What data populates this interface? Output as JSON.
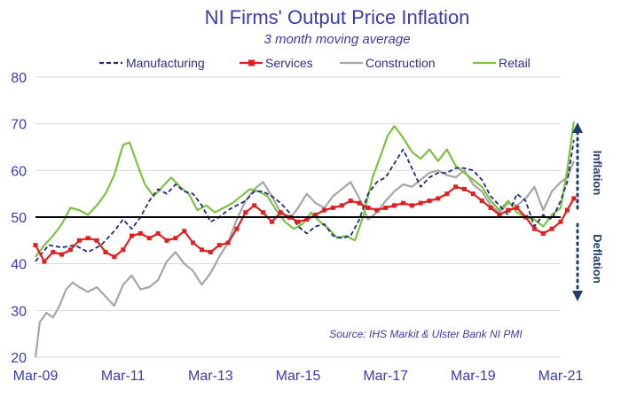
{
  "chart_data": {
    "type": "line",
    "title": "NI Firms' Output Price Inflation",
    "subtitle": "3 month moving average",
    "xlabel": "",
    "ylabel": "",
    "ylim": [
      20,
      80
    ],
    "yticks": [
      20,
      30,
      40,
      50,
      60,
      70,
      80
    ],
    "xticks": [
      "Mar-09",
      "Mar-11",
      "Mar-13",
      "Mar-15",
      "Mar-17",
      "Mar-19",
      "Mar-21"
    ],
    "x_range": [
      2009.0,
      2021.0
    ],
    "grid": true,
    "legend_position": "top",
    "reference_line": 50,
    "annotations": {
      "source": "Source: IHS Markit & Ulster Bank NI PMI",
      "inflation_label": "Inflation",
      "deflation_label": "Deflation"
    },
    "series": [
      {
        "name": "Manufacturing",
        "color": "#1f2d7a",
        "style": "dashed",
        "points": [
          [
            2009.0,
            40.5
          ],
          [
            2009.3,
            44.0
          ],
          [
            2009.6,
            43.5
          ],
          [
            2009.9,
            44.0
          ],
          [
            2010.2,
            42.5
          ],
          [
            2010.5,
            44.0
          ],
          [
            2010.8,
            47.0
          ],
          [
            2011.0,
            49.5
          ],
          [
            2011.2,
            47.5
          ],
          [
            2011.4,
            50.0
          ],
          [
            2011.6,
            53.5
          ],
          [
            2011.8,
            56.0
          ],
          [
            2012.0,
            55.0
          ],
          [
            2012.2,
            57.0
          ],
          [
            2012.4,
            55.5
          ],
          [
            2012.6,
            55.0
          ],
          [
            2012.8,
            52.5
          ],
          [
            2013.0,
            49.0
          ],
          [
            2013.2,
            50.0
          ],
          [
            2013.4,
            51.5
          ],
          [
            2013.6,
            52.5
          ],
          [
            2013.8,
            53.5
          ],
          [
            2014.0,
            55.5
          ],
          [
            2014.2,
            55.5
          ],
          [
            2014.4,
            54.5
          ],
          [
            2014.6,
            53.0
          ],
          [
            2014.8,
            51.0
          ],
          [
            2015.0,
            48.0
          ],
          [
            2015.2,
            46.5
          ],
          [
            2015.4,
            48.0
          ],
          [
            2015.6,
            48.5
          ],
          [
            2015.8,
            46.0
          ],
          [
            2016.0,
            45.5
          ],
          [
            2016.2,
            46.0
          ],
          [
            2016.4,
            49.5
          ],
          [
            2016.6,
            55.0
          ],
          [
            2016.8,
            57.5
          ],
          [
            2017.0,
            58.5
          ],
          [
            2017.2,
            61.5
          ],
          [
            2017.4,
            64.5
          ],
          [
            2017.6,
            60.5
          ],
          [
            2017.8,
            56.5
          ],
          [
            2018.0,
            58.5
          ],
          [
            2018.2,
            59.5
          ],
          [
            2018.4,
            59.5
          ],
          [
            2018.6,
            60.5
          ],
          [
            2018.8,
            60.5
          ],
          [
            2019.0,
            60.0
          ],
          [
            2019.2,
            58.0
          ],
          [
            2019.4,
            54.5
          ],
          [
            2019.6,
            52.5
          ],
          [
            2019.8,
            50.5
          ],
          [
            2020.0,
            55.0
          ],
          [
            2020.2,
            53.5
          ],
          [
            2020.4,
            48.0
          ],
          [
            2020.6,
            50.5
          ],
          [
            2020.8,
            49.5
          ],
          [
            2021.0,
            53.5
          ],
          [
            2021.15,
            57.5
          ],
          [
            2021.3,
            66.5
          ]
        ]
      },
      {
        "name": "Services",
        "color": "#e02020",
        "style": "solid-square-markers",
        "points": [
          [
            2009.0,
            44.0
          ],
          [
            2009.2,
            40.5
          ],
          [
            2009.4,
            42.5
          ],
          [
            2009.6,
            42.0
          ],
          [
            2009.8,
            43.0
          ],
          [
            2010.0,
            45.0
          ],
          [
            2010.2,
            45.5
          ],
          [
            2010.4,
            45.0
          ],
          [
            2010.6,
            42.5
          ],
          [
            2010.8,
            41.5
          ],
          [
            2011.0,
            43.0
          ],
          [
            2011.2,
            46.0
          ],
          [
            2011.4,
            46.5
          ],
          [
            2011.6,
            45.5
          ],
          [
            2011.8,
            46.5
          ],
          [
            2012.0,
            45.0
          ],
          [
            2012.2,
            45.5
          ],
          [
            2012.4,
            47.0
          ],
          [
            2012.6,
            44.5
          ],
          [
            2012.8,
            43.0
          ],
          [
            2013.0,
            42.5
          ],
          [
            2013.2,
            44.0
          ],
          [
            2013.4,
            44.5
          ],
          [
            2013.6,
            47.5
          ],
          [
            2013.8,
            51.0
          ],
          [
            2014.0,
            52.5
          ],
          [
            2014.2,
            51.0
          ],
          [
            2014.4,
            49.0
          ],
          [
            2014.6,
            51.0
          ],
          [
            2014.8,
            50.0
          ],
          [
            2015.0,
            49.0
          ],
          [
            2015.2,
            49.5
          ],
          [
            2015.4,
            50.5
          ],
          [
            2015.6,
            51.5
          ],
          [
            2015.8,
            52.0
          ],
          [
            2016.0,
            52.5
          ],
          [
            2016.2,
            53.5
          ],
          [
            2016.4,
            53.0
          ],
          [
            2016.6,
            52.0
          ],
          [
            2016.8,
            51.5
          ],
          [
            2017.0,
            52.0
          ],
          [
            2017.2,
            52.5
          ],
          [
            2017.4,
            53.0
          ],
          [
            2017.6,
            52.5
          ],
          [
            2017.8,
            53.0
          ],
          [
            2018.0,
            53.5
          ],
          [
            2018.2,
            54.0
          ],
          [
            2018.4,
            55.0
          ],
          [
            2018.6,
            56.5
          ],
          [
            2018.8,
            56.0
          ],
          [
            2019.0,
            55.0
          ],
          [
            2019.2,
            53.5
          ],
          [
            2019.4,
            52.0
          ],
          [
            2019.6,
            50.5
          ],
          [
            2019.8,
            51.5
          ],
          [
            2020.0,
            52.0
          ],
          [
            2020.2,
            50.0
          ],
          [
            2020.4,
            47.5
          ],
          [
            2020.6,
            46.5
          ],
          [
            2020.8,
            47.5
          ],
          [
            2021.0,
            49.0
          ],
          [
            2021.15,
            51.5
          ],
          [
            2021.3,
            54.0
          ]
        ]
      },
      {
        "name": "Construction",
        "color": "#a6a6a6",
        "style": "solid",
        "points": [
          [
            2009.0,
            20.0
          ],
          [
            2009.1,
            27.5
          ],
          [
            2009.25,
            29.5
          ],
          [
            2009.4,
            28.5
          ],
          [
            2009.55,
            31.0
          ],
          [
            2009.7,
            34.5
          ],
          [
            2009.85,
            36.0
          ],
          [
            2010.0,
            35.0
          ],
          [
            2010.2,
            34.0
          ],
          [
            2010.4,
            35.0
          ],
          [
            2010.6,
            33.0
          ],
          [
            2010.8,
            31.0
          ],
          [
            2011.0,
            35.5
          ],
          [
            2011.2,
            37.5
          ],
          [
            2011.4,
            34.5
          ],
          [
            2011.6,
            35.0
          ],
          [
            2011.8,
            36.5
          ],
          [
            2012.0,
            40.5
          ],
          [
            2012.2,
            42.5
          ],
          [
            2012.4,
            40.0
          ],
          [
            2012.6,
            38.5
          ],
          [
            2012.8,
            35.5
          ],
          [
            2013.0,
            38.0
          ],
          [
            2013.2,
            41.5
          ],
          [
            2013.4,
            44.5
          ],
          [
            2013.6,
            49.5
          ],
          [
            2013.8,
            53.5
          ],
          [
            2014.0,
            56.0
          ],
          [
            2014.2,
            57.5
          ],
          [
            2014.4,
            54.5
          ],
          [
            2014.6,
            51.0
          ],
          [
            2014.8,
            49.5
          ],
          [
            2015.0,
            52.0
          ],
          [
            2015.2,
            55.0
          ],
          [
            2015.4,
            53.0
          ],
          [
            2015.6,
            52.0
          ],
          [
            2015.8,
            54.5
          ],
          [
            2016.0,
            56.0
          ],
          [
            2016.2,
            57.5
          ],
          [
            2016.4,
            54.0
          ],
          [
            2016.6,
            49.5
          ],
          [
            2016.8,
            51.0
          ],
          [
            2017.0,
            53.5
          ],
          [
            2017.2,
            55.5
          ],
          [
            2017.4,
            57.0
          ],
          [
            2017.6,
            56.5
          ],
          [
            2017.8,
            58.0
          ],
          [
            2018.0,
            59.5
          ],
          [
            2018.2,
            60.0
          ],
          [
            2018.4,
            59.0
          ],
          [
            2018.6,
            58.5
          ],
          [
            2018.8,
            60.0
          ],
          [
            2019.0,
            57.0
          ],
          [
            2019.2,
            55.5
          ],
          [
            2019.4,
            52.5
          ],
          [
            2019.6,
            51.0
          ],
          [
            2019.8,
            53.0
          ],
          [
            2020.0,
            52.5
          ],
          [
            2020.2,
            54.0
          ],
          [
            2020.4,
            56.5
          ],
          [
            2020.6,
            51.5
          ],
          [
            2020.8,
            55.5
          ],
          [
            2021.0,
            57.5
          ],
          [
            2021.15,
            58.5
          ],
          [
            2021.3,
            62.0
          ]
        ]
      },
      {
        "name": "Retail",
        "color": "#7cc242",
        "style": "solid",
        "points": [
          [
            2009.0,
            41.5
          ],
          [
            2009.2,
            44.0
          ],
          [
            2009.4,
            46.0
          ],
          [
            2009.6,
            48.5
          ],
          [
            2009.8,
            52.0
          ],
          [
            2010.0,
            51.5
          ],
          [
            2010.2,
            50.5
          ],
          [
            2010.4,
            52.5
          ],
          [
            2010.6,
            55.0
          ],
          [
            2010.8,
            59.0
          ],
          [
            2011.0,
            65.5
          ],
          [
            2011.15,
            66.0
          ],
          [
            2011.3,
            62.0
          ],
          [
            2011.5,
            57.0
          ],
          [
            2011.7,
            54.5
          ],
          [
            2011.9,
            56.5
          ],
          [
            2012.1,
            58.5
          ],
          [
            2012.3,
            56.5
          ],
          [
            2012.5,
            55.0
          ],
          [
            2012.7,
            51.5
          ],
          [
            2012.9,
            52.5
          ],
          [
            2013.1,
            51.0
          ],
          [
            2013.3,
            52.0
          ],
          [
            2013.5,
            53.0
          ],
          [
            2013.7,
            54.5
          ],
          [
            2013.9,
            56.0
          ],
          [
            2014.1,
            55.5
          ],
          [
            2014.3,
            54.5
          ],
          [
            2014.5,
            51.5
          ],
          [
            2014.7,
            49.0
          ],
          [
            2014.9,
            47.5
          ],
          [
            2015.1,
            48.5
          ],
          [
            2015.3,
            51.0
          ],
          [
            2015.5,
            49.0
          ],
          [
            2015.7,
            47.5
          ],
          [
            2015.9,
            45.5
          ],
          [
            2016.1,
            46.0
          ],
          [
            2016.3,
            45.0
          ],
          [
            2016.5,
            50.5
          ],
          [
            2016.7,
            58.5
          ],
          [
            2016.9,
            63.5
          ],
          [
            2017.05,
            67.5
          ],
          [
            2017.2,
            69.5
          ],
          [
            2017.4,
            67.0
          ],
          [
            2017.6,
            64.0
          ],
          [
            2017.8,
            62.5
          ],
          [
            2018.0,
            64.5
          ],
          [
            2018.2,
            62.0
          ],
          [
            2018.4,
            64.5
          ],
          [
            2018.6,
            61.0
          ],
          [
            2018.8,
            59.5
          ],
          [
            2019.0,
            58.0
          ],
          [
            2019.2,
            56.5
          ],
          [
            2019.4,
            53.5
          ],
          [
            2019.6,
            51.5
          ],
          [
            2019.8,
            53.5
          ],
          [
            2020.0,
            51.0
          ],
          [
            2020.2,
            50.0
          ],
          [
            2020.4,
            49.5
          ],
          [
            2020.6,
            48.0
          ],
          [
            2020.8,
            50.5
          ],
          [
            2021.0,
            52.0
          ],
          [
            2021.15,
            60.0
          ],
          [
            2021.3,
            70.5
          ]
        ]
      }
    ]
  }
}
